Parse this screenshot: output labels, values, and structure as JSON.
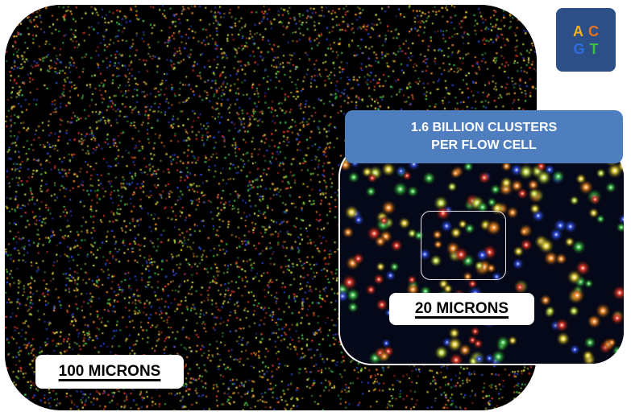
{
  "banner": {
    "line1": "1.6 BILLION CLUSTERS",
    "line2": "PER FLOW CELL"
  },
  "logo": {
    "letters": [
      {
        "char": "A",
        "color": "#f2b21c"
      },
      {
        "char": "C",
        "color": "#e8741e"
      },
      {
        "char": "G",
        "color": "#2f6de0"
      },
      {
        "char": "T",
        "color": "#3fbf4a"
      }
    ]
  },
  "scale_bars": {
    "large": "100 MICRONS",
    "small": "20 MICRONS"
  },
  "colors": {
    "cluster_palette": [
      "#e8d23a",
      "#3fbf4a",
      "#2f4de0",
      "#e23a2a",
      "#f08a2a",
      "#c8e04a",
      "#ffffff"
    ],
    "banner": "#4f7ebf",
    "logo_bg": "#2d4f88"
  }
}
